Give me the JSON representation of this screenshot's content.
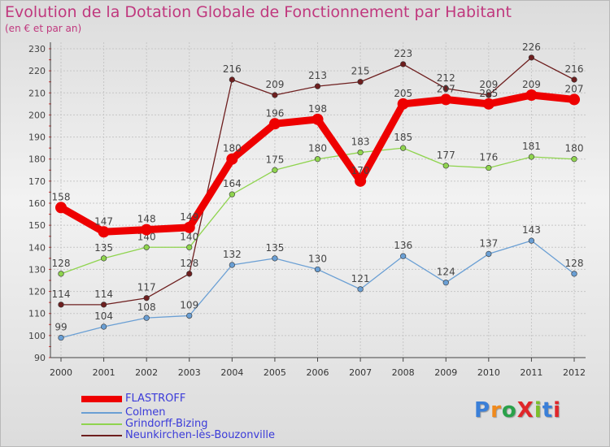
{
  "title": "Evolution de la Dotation Globale de Fonctionnement par Habitant",
  "subtitle": "(en € et par an)",
  "logo_text": "ProXiti",
  "chart_data": {
    "type": "line",
    "title": "Evolution de la Dotation Globale de Fonctionnement par Habitant",
    "subtitle": "(en € et par an)",
    "xlabel": "",
    "ylabel": "",
    "x": [
      "2000",
      "2001",
      "2002",
      "2003",
      "2004",
      "2005",
      "2006",
      "2007",
      "2008",
      "2009",
      "2010",
      "2011",
      "2012"
    ],
    "yticks": [
      90,
      100,
      110,
      120,
      130,
      140,
      150,
      160,
      170,
      180,
      190,
      200,
      210,
      220,
      230
    ],
    "ylim": [
      90,
      230
    ],
    "grid": true,
    "legend_position": "bottom-left",
    "series": [
      {
        "name": "Neunkirchen-lès-Bouzonville",
        "color": "#6e1f1f",
        "values": [
          114,
          114,
          117,
          128,
          216,
          209,
          213,
          215,
          223,
          212,
          209,
          226,
          216
        ],
        "labels": [
          "114",
          "114",
          "117",
          "128",
          "216",
          "209",
          "213",
          "215",
          "223",
          "212",
          "209",
          "226",
          "216"
        ]
      },
      {
        "name": "Colmen",
        "color": "#6a9fd4",
        "values": [
          99,
          104,
          108,
          109,
          132,
          135,
          130,
          121,
          136,
          124,
          137,
          143,
          128
        ],
        "labels": [
          "99",
          "104",
          "108",
          "109",
          "132",
          "135",
          "130",
          "121",
          "136",
          "124",
          "137",
          "143",
          "128"
        ]
      },
      {
        "name": "Grindorff-Bizing",
        "color": "#8fd44e",
        "values": [
          128,
          135,
          140,
          140,
          164,
          175,
          180,
          183,
          185,
          177,
          176,
          181,
          180
        ],
        "labels": [
          "128",
          "135",
          "140",
          "140",
          "164",
          "175",
          "180",
          "183",
          "185",
          "177",
          "176",
          "181",
          "180"
        ]
      },
      {
        "name": "FLASTROFF",
        "color": "#ee0000",
        "values": [
          158,
          147,
          148,
          149,
          180,
          196,
          198,
          170,
          205,
          207,
          205,
          209,
          207
        ],
        "labels": [
          "158",
          "147",
          "148",
          "149",
          "180",
          "196",
          "198",
          "170",
          "205",
          "207",
          "205",
          "209",
          "207"
        ]
      }
    ]
  },
  "legend": [
    {
      "name": "FLASTROFF",
      "color": "#ee0000"
    },
    {
      "name": "Colmen",
      "color": "#6a9fd4"
    },
    {
      "name": "Grindorff-Bizing",
      "color": "#8fd44e"
    },
    {
      "name": "Neunkirchen-lès-Bouzonville",
      "color": "#6e1f1f"
    }
  ]
}
